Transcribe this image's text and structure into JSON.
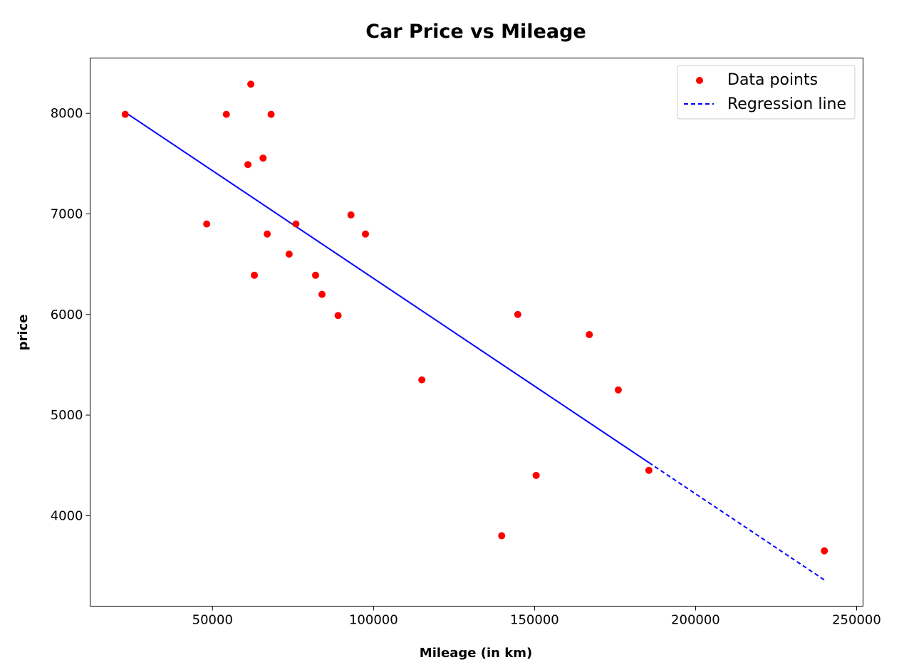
{
  "chart_data": {
    "type": "scatter",
    "title": "Car Price vs Mileage",
    "xlabel": "Mileage (in km)",
    "ylabel": "price",
    "xlim": [
      12000,
      252000
    ],
    "ylim": [
      3100,
      8550
    ],
    "xticks": [
      50000,
      100000,
      150000,
      200000,
      250000
    ],
    "yticks": [
      4000,
      5000,
      6000,
      7000,
      8000
    ],
    "grid": false,
    "legend_position": "top-right",
    "series": [
      {
        "name": "Data points",
        "kind": "scatter",
        "color": "#ff0000",
        "x": [
          22900,
          48200,
          54300,
          61000,
          61900,
          63000,
          65700,
          67000,
          68200,
          73800,
          75900,
          82000,
          84000,
          89000,
          93000,
          97500,
          115000,
          139800,
          144800,
          150500,
          167000,
          176000,
          185500,
          240000
        ],
        "y": [
          7990,
          6900,
          7990,
          7490,
          8290,
          6390,
          7555,
          6800,
          7990,
          6600,
          6900,
          6390,
          6200,
          5990,
          6990,
          6800,
          5350,
          3800,
          6000,
          4400,
          5800,
          5250,
          4450,
          3650
        ]
      },
      {
        "name": "Regression line",
        "kind": "line",
        "style": "dashed",
        "color": "#0000ff",
        "x": [
          22900,
          240000
        ],
        "y": [
          8010,
          3360
        ]
      }
    ]
  }
}
